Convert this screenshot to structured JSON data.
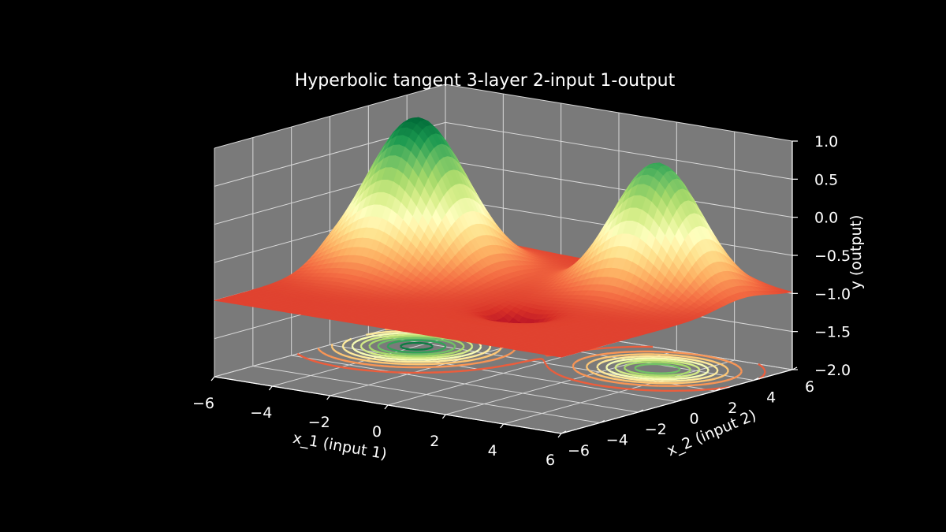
{
  "chart_data": {
    "type": "surface",
    "title": "Hyperbolic tangent 3-layer 2-input 1-output",
    "xlabel": "x_1 (input 1)",
    "ylabel": "x_2 (input 2)",
    "zlabel": "y (output)",
    "xlim": [
      -6,
      6
    ],
    "ylim": [
      -6,
      6
    ],
    "zlim": [
      -2.0,
      1.0
    ],
    "x_ticks": [
      "−6",
      "−4",
      "−2",
      "0",
      "2",
      "4",
      "6"
    ],
    "y_ticks": [
      "−6",
      "−4",
      "−2",
      "0",
      "2",
      "4",
      "6"
    ],
    "z_ticks": [
      "−2.0",
      "−1.5",
      "−1.0",
      "−0.5",
      "0.0",
      "0.5",
      "1.0"
    ],
    "colormap": "RdYlGn",
    "baseline": -1.0,
    "peaks": [
      {
        "x1": -4.0,
        "x2": 1.5,
        "height": 1.0
      },
      {
        "x1": 3.0,
        "x2": 3.5,
        "height": 0.7
      }
    ],
    "dip": {
      "x1": 1.5,
      "x2": -1.5,
      "depth": -1.3
    },
    "contour_offset": -2.0,
    "grid": true,
    "pane_color": "#7a7a7a",
    "background": "#000000"
  }
}
